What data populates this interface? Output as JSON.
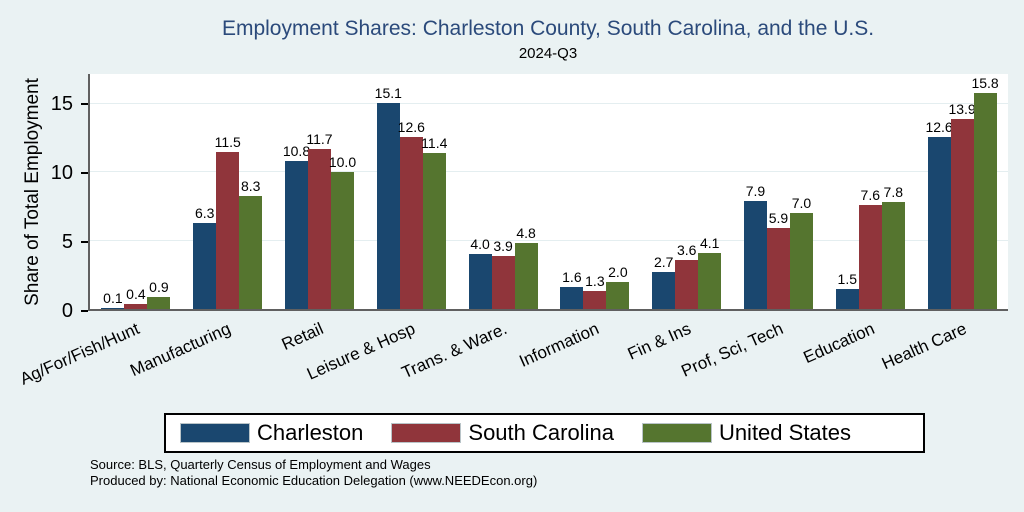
{
  "title": "Employment Shares: Charleston County, South Carolina, and the U.S.",
  "subtitle": "2024-Q3",
  "notes": {
    "line1": "Source: BLS, Quarterly Census of Employment and Wages",
    "line2": "Produced by: National Economic Education Delegation (www.NEEDEcon.org)"
  },
  "colors": {
    "background": "#eaf2f3",
    "plot_background": "#ffffff",
    "gridline": "#e4eef0",
    "axis_line": "#606060",
    "title_text": "#2b4a7b",
    "charleston": "#1a476f",
    "south_carolina": "#90353b",
    "united_states": "#55752f"
  },
  "chart_data": {
    "type": "bar",
    "title": "Employment Shares: Charleston County, South Carolina, and the U.S.",
    "subtitle": "2024-Q3",
    "xlabel": "",
    "ylabel": "Share of Total Employment",
    "ylim": [
      0,
      17.2
    ],
    "yticks": [
      0,
      5,
      10,
      15
    ],
    "grid": true,
    "value_labels": true,
    "legend_position": "bottom",
    "categories": [
      "Ag/For/Fish/Hunt",
      "Manufacturing",
      "Retail",
      "Leisure & Hosp",
      "Trans. & Ware.",
      "Information",
      "Fin & Ins",
      "Prof, Sci, Tech",
      "Education",
      "Health Care"
    ],
    "series": [
      {
        "name": "Charleston",
        "color": "#1a476f",
        "values": [
          0.1,
          6.3,
          10.8,
          15.1,
          4.0,
          1.6,
          2.7,
          7.9,
          1.5,
          12.6
        ]
      },
      {
        "name": "South Carolina",
        "color": "#90353b",
        "values": [
          0.4,
          11.5,
          11.7,
          12.6,
          3.9,
          1.3,
          3.6,
          5.9,
          7.6,
          13.9
        ]
      },
      {
        "name": "United States",
        "color": "#55752f",
        "values": [
          0.9,
          8.3,
          10.0,
          11.4,
          4.8,
          2.0,
          4.1,
          7.0,
          7.8,
          15.8
        ]
      }
    ]
  }
}
